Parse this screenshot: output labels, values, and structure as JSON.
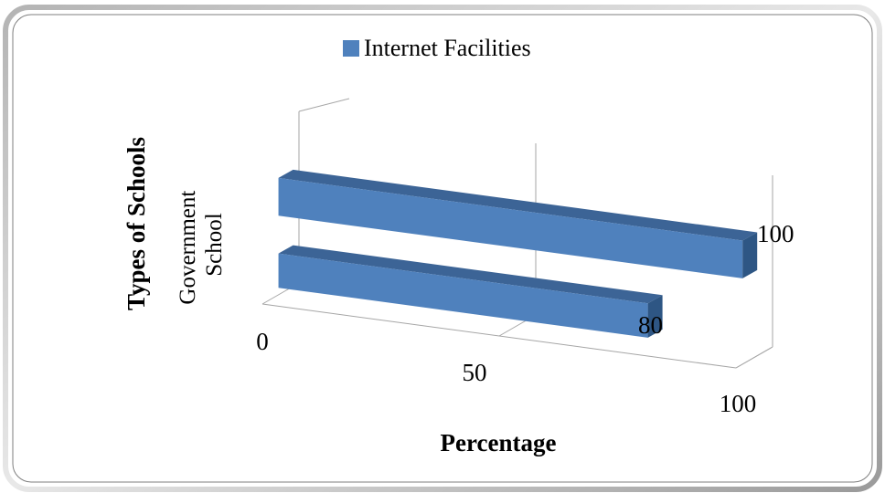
{
  "chart_data": {
    "type": "bar",
    "orientation": "horizontal",
    "three_d": true,
    "categories": [
      "Government School",
      ""
    ],
    "series": [
      {
        "name": "Internet Facilities",
        "values": [
          80,
          100
        ],
        "color": "#4F81BD",
        "top_color": "#3C6496",
        "end_color": "#2E5684"
      }
    ],
    "xlabel": "Percentage",
    "ylabel": "Types of Schools",
    "xticks": [
      "0",
      "50",
      "100"
    ],
    "xlim": [
      0,
      100
    ],
    "legend": "top",
    "grid": true,
    "frame_color": "#8C8C8C",
    "gridline_color": "#A6A6A6"
  }
}
